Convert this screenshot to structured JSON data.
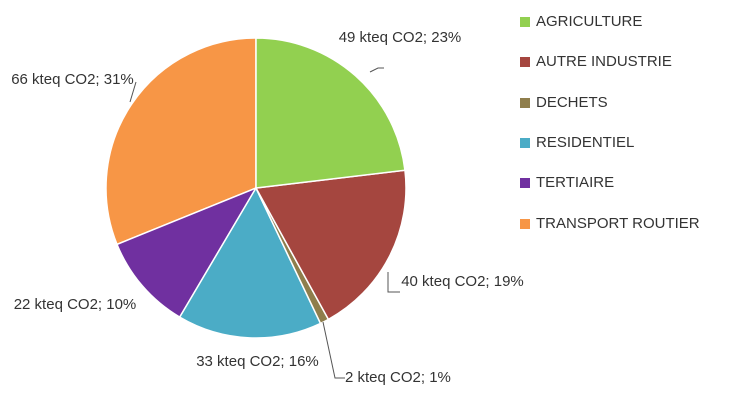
{
  "chart_data": {
    "type": "pie",
    "categories": [
      "AGRICULTURE",
      "AUTRE INDUSTRIE",
      "DECHETS",
      "RESIDENTIEL",
      "TERTIAIRE",
      "TRANSPORT ROUTIER"
    ],
    "values": [
      49,
      40,
      2,
      33,
      22,
      66
    ],
    "value_labels": [
      "49 kteq CO2; 23%",
      "40 kteq CO2; 19%",
      "2 kteq CO2; 1%",
      "33 kteq CO2; 16%",
      "22 kteq CO2; 10%",
      "66 kteq CO2; 31%"
    ],
    "colors": [
      "#92d050",
      "#a5463f",
      "#8f7e4c",
      "#4bacc6",
      "#7030a0",
      "#f79646"
    ],
    "legend": "right"
  }
}
